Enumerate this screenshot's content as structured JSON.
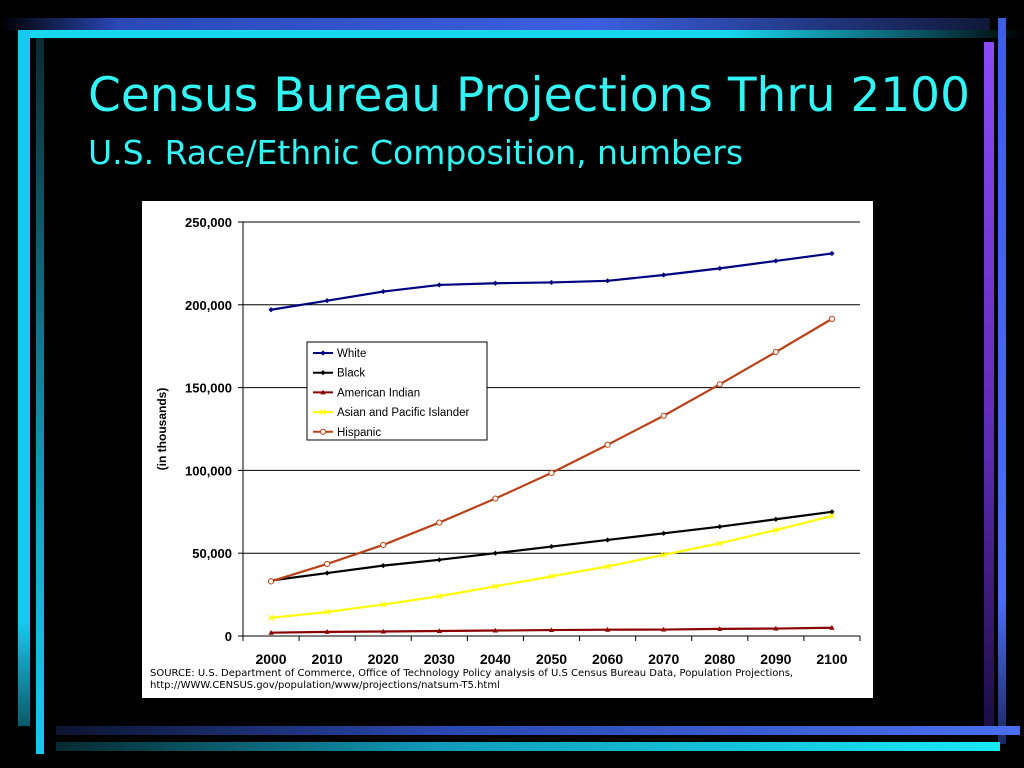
{
  "slide": {
    "title": "Census Bureau Projections Thru 2100",
    "subtitle": "U.S. Race/Ethnic Composition, numbers",
    "title_color": "#33F5F5",
    "border_colors": {
      "top_blue": "#3A5FE0",
      "top_cyan": "#18D8F0",
      "left_cyan": "#18C8F0",
      "right_blue": "#4A70F0",
      "right_purple": "#7A40F0",
      "bottom_blue": "#4A70F0",
      "bottom_cyan": "#18E8F8"
    }
  },
  "source": {
    "line1": "SOURCE: U.S. Department of Commerce, Office of Technology Policy analysis of U.S Census Bureau Data, Population Projections,",
    "line2": "http://WWW.CENSUS.gov/population/www/projections/natsum-T5.html"
  },
  "chart_data": {
    "type": "line",
    "title": "",
    "xlabel": "",
    "ylabel": "(in thousands)",
    "x": [
      2000,
      2010,
      2020,
      2030,
      2040,
      2050,
      2060,
      2070,
      2080,
      2090,
      2100
    ],
    "ylim": [
      0,
      250000
    ],
    "y_ticks": [
      0,
      50000,
      100000,
      150000,
      200000,
      250000
    ],
    "y_tick_labels": [
      "0",
      "50,000",
      "100,000",
      "150,000",
      "200,000",
      "250,000"
    ],
    "grid": true,
    "legend_position": "upper-left",
    "series": [
      {
        "name": "White",
        "color": "#000080",
        "marker": "diamond",
        "values": [
          197000,
          202500,
          208000,
          212000,
          213000,
          213500,
          214500,
          218000,
          222000,
          226500,
          231000
        ]
      },
      {
        "name": "Black",
        "color": "#000000",
        "marker": "diamond",
        "values": [
          33500,
          38000,
          42500,
          46000,
          50000,
          54000,
          58000,
          62000,
          66000,
          70500,
          75000
        ]
      },
      {
        "name": "American Indian",
        "color": "#8B0000",
        "marker": "triangle",
        "values": [
          2000,
          2500,
          2700,
          3000,
          3300,
          3600,
          3800,
          3900,
          4300,
          4500,
          5000
        ]
      },
      {
        "name": "Asian and Pacific Islander",
        "color": "#FFFF00",
        "marker": "x",
        "values": [
          11000,
          14500,
          19000,
          24000,
          30000,
          36000,
          42000,
          49000,
          56000,
          64000,
          72500
        ]
      },
      {
        "name": "Hispanic",
        "color": "#B8431A",
        "marker": "circle",
        "values": [
          33000,
          43500,
          55000,
          68500,
          83000,
          98500,
          115500,
          133000,
          152000,
          171500,
          191500
        ]
      }
    ]
  }
}
